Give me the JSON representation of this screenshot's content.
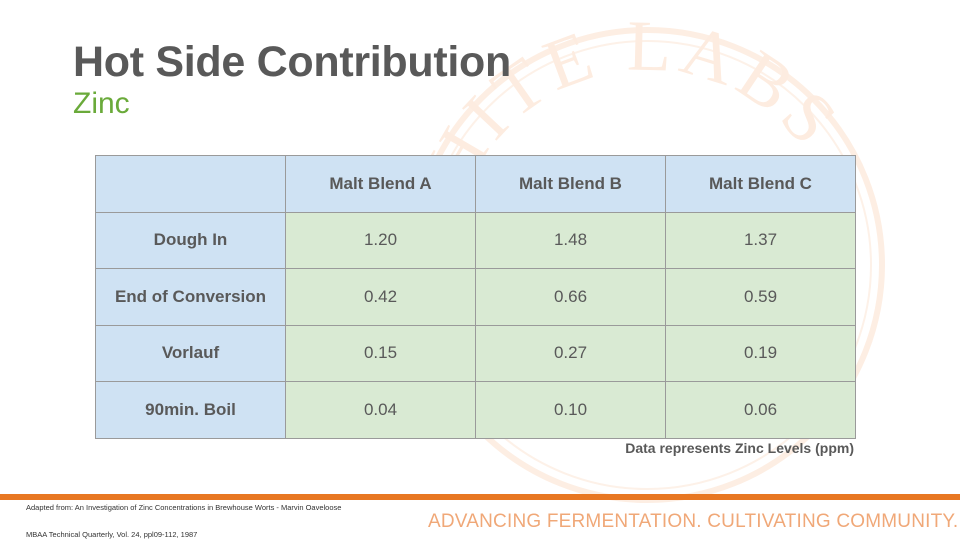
{
  "slide": {
    "title": "Hot Side Contribution",
    "subtitle": "Zinc"
  },
  "table": {
    "headers": [
      "",
      "Malt Blend A",
      "Malt Blend B",
      "Malt Blend C"
    ],
    "rows": [
      {
        "label": "Dough In",
        "values": [
          "1.20",
          "1.48",
          "1.37"
        ]
      },
      {
        "label": "End of Conversion",
        "values": [
          "0.42",
          "0.66",
          "0.59"
        ]
      },
      {
        "label": "Vorlauf",
        "values": [
          "0.15",
          "0.27",
          "0.19"
        ]
      },
      {
        "label": "90min. Boil",
        "values": [
          "0.04",
          "0.10",
          "0.06"
        ]
      }
    ],
    "note": "Data represents Zinc Levels (ppm)"
  },
  "footer": {
    "source_line1": "Adapted from: An Investigation of Zinc Concentrations in Brewhouse Worts - Marvin Oaveloose",
    "source_line2": "MBAA Technical Quarterly, Vol. 24, ppl09-112, 1987",
    "tagline": "ADVANCING FERMENTATION. CULTIVATING COMMUNITY."
  },
  "watermark": {
    "text": "WHITE LABS · YEAST & FERMENTATION"
  },
  "colors": {
    "accent_orange": "#e87722",
    "title_gray": "#595959",
    "subtitle_green": "#6aaa3a",
    "header_blue": "#cfe2f3",
    "cell_green": "#d9ead3"
  }
}
